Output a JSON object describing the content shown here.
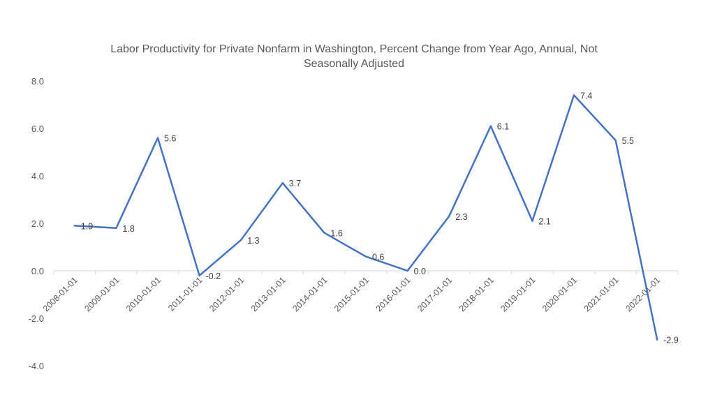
{
  "chart_data": {
    "type": "line",
    "title_lines": [
      "Labor Productivity for Private Nonfarm in Washington, Percent Change from Year Ago, Annual, Not",
      "Seasonally Adjusted"
    ],
    "xlabel": "",
    "ylabel": "",
    "categories": [
      "2008-01-01",
      "2009-01-01",
      "2010-01-01",
      "2011-01-01",
      "2012-01-01",
      "2013-01-01",
      "2014-01-01",
      "2015-01-01",
      "2016-01-01",
      "2017-01-01",
      "2018-01-01",
      "2019-01-01",
      "2020-01-01",
      "2021-01-01",
      "2022-01-01"
    ],
    "series": [
      {
        "values": [
          1.9,
          1.8,
          5.6,
          -0.2,
          1.3,
          3.7,
          1.6,
          0.6,
          0.0,
          2.3,
          6.1,
          2.1,
          7.4,
          5.5,
          -2.9
        ],
        "data_labels": [
          "1.9",
          "1.8",
          "5.6",
          "-0.2",
          "1.3",
          "3.7",
          "1.6",
          "0.6",
          "0.0",
          "2.3",
          "6.1",
          "2.1",
          "7.4",
          "5.5",
          "-2.9"
        ],
        "color": "#4472C4"
      }
    ],
    "ylim": [
      -4.0,
      8.0
    ],
    "yticks": [
      "-4.0",
      "-2.0",
      "0.0",
      "2.0",
      "4.0",
      "6.0",
      "8.0"
    ],
    "grid": false,
    "legend": "none"
  }
}
